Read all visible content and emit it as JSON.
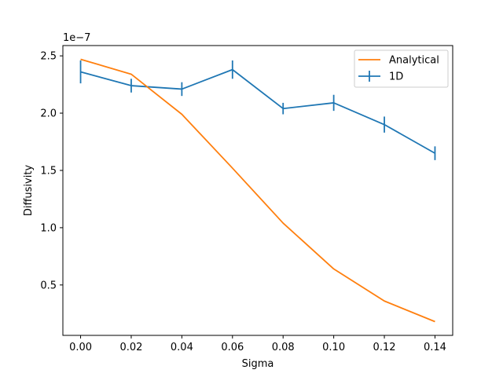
{
  "chart_data": {
    "type": "line",
    "title": "",
    "xlabel": "Sigma",
    "ylabel": "Diffusivity",
    "y_offset_label": "1e−7",
    "xlim": [
      -0.007,
      0.147
    ],
    "ylim": [
      0.06,
      2.59
    ],
    "y_display_scale": 1e-07,
    "grid": false,
    "legend_position": "top-right",
    "x_ticks": [
      0.0,
      0.02,
      0.04,
      0.06,
      0.08,
      0.1,
      0.12,
      0.14
    ],
    "x_tick_labels": [
      "0.00",
      "0.02",
      "0.04",
      "0.06",
      "0.08",
      "0.10",
      "0.12",
      "0.14"
    ],
    "y_ticks": [
      0.5,
      1.0,
      1.5,
      2.0,
      2.5
    ],
    "y_tick_labels": [
      "0.5",
      "1.0",
      "1.5",
      "2.0",
      "2.5"
    ],
    "series": [
      {
        "name": "Analytical",
        "color": "#ff7f0e",
        "x": [
          0.0,
          0.02,
          0.04,
          0.06,
          0.08,
          0.1,
          0.12,
          0.14
        ],
        "y": [
          2.47,
          2.34,
          1.99,
          1.52,
          1.04,
          0.64,
          0.36,
          0.18
        ]
      },
      {
        "name": "1D",
        "color": "#1f77b4",
        "x": [
          0.0,
          0.02,
          0.04,
          0.06,
          0.08,
          0.1,
          0.12,
          0.14
        ],
        "y": [
          2.36,
          2.24,
          2.21,
          2.38,
          2.04,
          2.09,
          1.9,
          1.65
        ],
        "yerr": [
          0.1,
          0.06,
          0.06,
          0.08,
          0.05,
          0.07,
          0.07,
          0.06
        ]
      }
    ]
  }
}
